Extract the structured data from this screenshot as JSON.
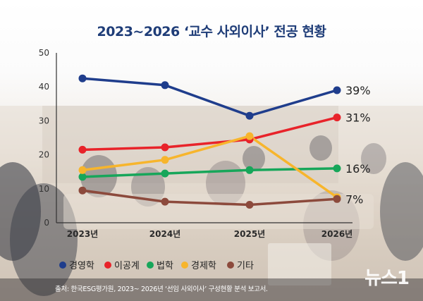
{
  "title": "2023~2026 ‘교수 사외이사’ 전공 현황",
  "source": "출처: 한국ESG평가원, 2023~ 2026년 ‘선임 사외이사’ 구성현황 분석 보고서.",
  "logo": "뉴스1",
  "chart_data": {
    "type": "line",
    "categories": [
      "2023년",
      "2024년",
      "2025년",
      "2026년"
    ],
    "ylim": [
      0,
      50
    ],
    "yticks": [
      0,
      10,
      20,
      30,
      40,
      50
    ],
    "series": [
      {
        "name": "경영학",
        "color": "#1f3d8c",
        "values": [
          42.5,
          40.5,
          31.5,
          39
        ],
        "end_label": "39%"
      },
      {
        "name": "이공계",
        "color": "#e8232a",
        "values": [
          21.5,
          22.2,
          24.5,
          31
        ],
        "end_label": "31%"
      },
      {
        "name": "법학",
        "color": "#17a65a",
        "values": [
          13.5,
          14.5,
          15.5,
          16
        ],
        "end_label": "16%"
      },
      {
        "name": "경제학",
        "color": "#f7b52c",
        "values": [
          15.5,
          18.5,
          25.5,
          7.5
        ],
        "end_label": ""
      },
      {
        "name": "기타",
        "color": "#8c4a3c",
        "values": [
          9.5,
          6.2,
          5.3,
          7
        ],
        "end_label": "7%"
      }
    ],
    "legend_position": "bottom-left",
    "grid": false
  }
}
